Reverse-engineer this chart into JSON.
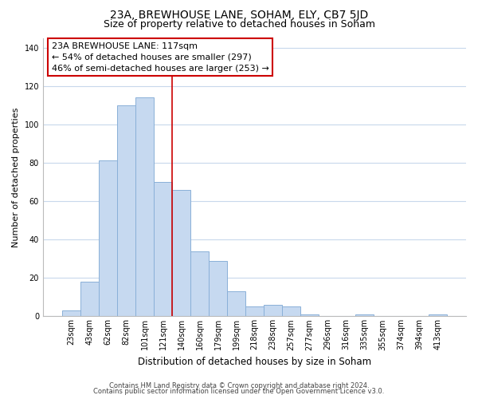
{
  "title": "23A, BREWHOUSE LANE, SOHAM, ELY, CB7 5JD",
  "subtitle": "Size of property relative to detached houses in Soham",
  "xlabel": "Distribution of detached houses by size in Soham",
  "ylabel": "Number of detached properties",
  "bar_labels": [
    "23sqm",
    "43sqm",
    "62sqm",
    "82sqm",
    "101sqm",
    "121sqm",
    "140sqm",
    "160sqm",
    "179sqm",
    "199sqm",
    "218sqm",
    "238sqm",
    "257sqm",
    "277sqm",
    "296sqm",
    "316sqm",
    "335sqm",
    "355sqm",
    "374sqm",
    "394sqm",
    "413sqm"
  ],
  "bar_values": [
    3,
    18,
    81,
    110,
    114,
    70,
    66,
    34,
    29,
    13,
    5,
    6,
    5,
    1,
    0,
    0,
    1,
    0,
    0,
    0,
    1
  ],
  "bar_color": "#c6d9f0",
  "bar_edge_color": "#8ab0d8",
  "vline_index": 5,
  "vline_color": "#cc0000",
  "annotation_text": "23A BREWHOUSE LANE: 117sqm\n← 54% of detached houses are smaller (297)\n46% of semi-detached houses are larger (253) →",
  "annotation_box_color": "#ffffff",
  "annotation_box_edge_color": "#cc0000",
  "ylim": [
    0,
    145
  ],
  "yticks": [
    0,
    20,
    40,
    60,
    80,
    100,
    120,
    140
  ],
  "footer1": "Contains HM Land Registry data © Crown copyright and database right 2024.",
  "footer2": "Contains public sector information licensed under the Open Government Licence v3.0.",
  "background_color": "#ffffff",
  "grid_color": "#c8d8ec",
  "title_fontsize": 10,
  "subtitle_fontsize": 9,
  "ylabel_fontsize": 8,
  "xlabel_fontsize": 8.5,
  "tick_fontsize": 7,
  "annot_fontsize": 8,
  "footer_fontsize": 6
}
